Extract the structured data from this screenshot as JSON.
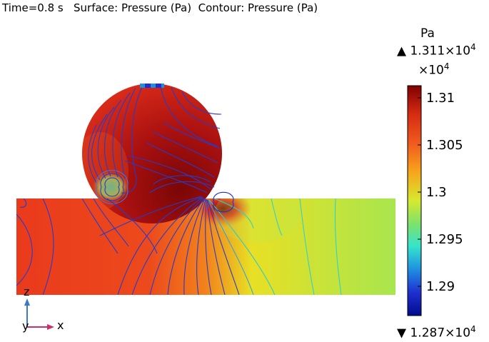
{
  "header": {
    "title": "Time=0.8 s   Surface: Pressure (Pa)  Contour: Pressure (Pa)"
  },
  "colorbar": {
    "unit": "Pa",
    "max_label": "1.311×10",
    "max_exp": "4",
    "scale_label": "×10",
    "scale_exp": "4",
    "ticks": [
      "1.31",
      "1.305",
      "1.3",
      "1.295",
      "1.29"
    ],
    "min_label": "1.287×10",
    "min_exp": "4",
    "max_marker": "▲",
    "min_marker": "▼",
    "colors": [
      "#7f0000",
      "#d42a12",
      "#f05a1e",
      "#f7a21a",
      "#d6e92f",
      "#7ee26a",
      "#35e3cc",
      "#1f8fe0",
      "#1f2fd0",
      "#000c8c"
    ]
  },
  "axes": {
    "z_label": "z",
    "y_label": "y",
    "x_label": "x"
  }
}
